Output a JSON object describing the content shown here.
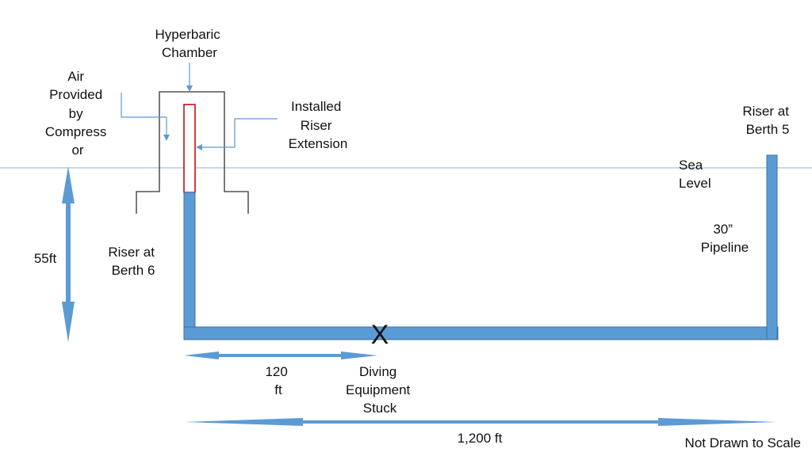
{
  "labels": {
    "hyperbaric_chamber": [
      "Hyperbaric",
      "Chamber"
    ],
    "air_provided": [
      "Air",
      "Provided",
      "by",
      "Compress",
      "or"
    ],
    "installed_riser_extension": [
      "Installed",
      "Riser",
      "Extension"
    ],
    "riser_berth5": [
      "Riser at",
      "Berth 5"
    ],
    "sea_level": [
      "Sea",
      "Level"
    ],
    "pipeline": [
      "30”",
      "Pipeline"
    ],
    "depth": "55ft",
    "riser_berth6": [
      "Riser at",
      "Berth 6"
    ],
    "stuck_marker": "X",
    "distance_120": [
      "120",
      "ft"
    ],
    "diving_equipment_stuck": [
      "Diving",
      "Equipment",
      "Stuck"
    ],
    "distance_1200": "1,200 ft",
    "note": "Not Drawn to Scale"
  },
  "colors": {
    "pipe": "#5b9bd5",
    "pipe_edge": "#41719c",
    "sea_line": "#9dc3e6",
    "extension_outline": "#c00000",
    "chamber_outline": "#333333",
    "text": "#111111"
  }
}
